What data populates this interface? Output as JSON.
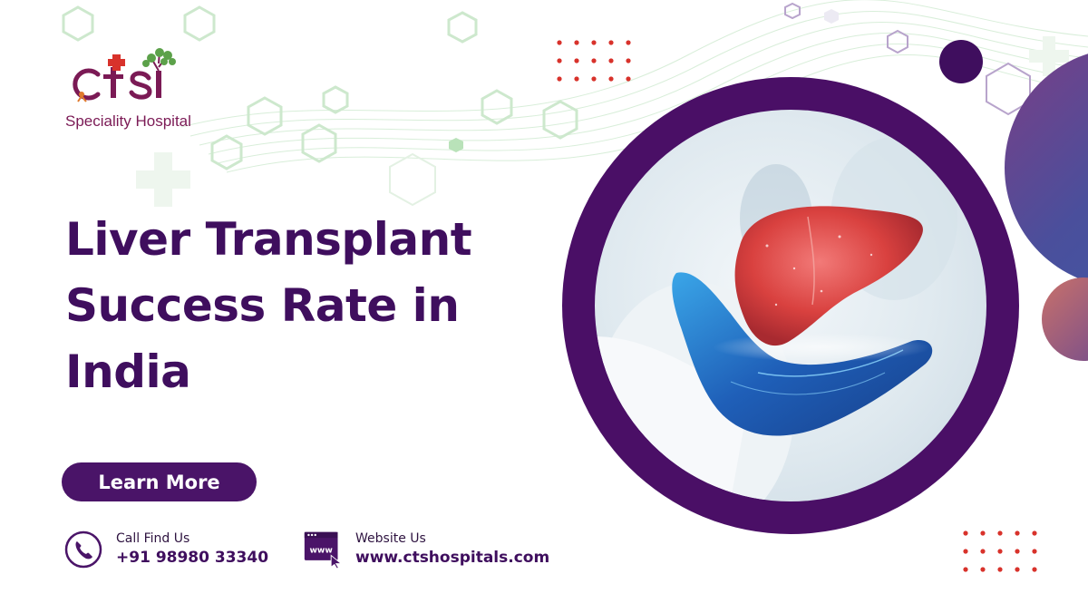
{
  "brand": {
    "logo_letters": "ctsi",
    "name": "Speciality Hospital"
  },
  "headline": {
    "line1": "Liver Transplant",
    "line2": "Success Rate in",
    "line3": "India"
  },
  "cta": {
    "label": "Learn More"
  },
  "call": {
    "label": "Call Find Us",
    "value": "+91 98980 33340",
    "icon": "phone-icon"
  },
  "website": {
    "label": "Website Us",
    "value": "www.ctshospitals.com",
    "icon": "www-browser-icon",
    "icon_text": "www"
  },
  "colors": {
    "primary_purple": "#4a1468",
    "headline_purple": "#3f0e5e",
    "accent_red": "#d8322b",
    "hex_green": "#bfe3bf"
  }
}
